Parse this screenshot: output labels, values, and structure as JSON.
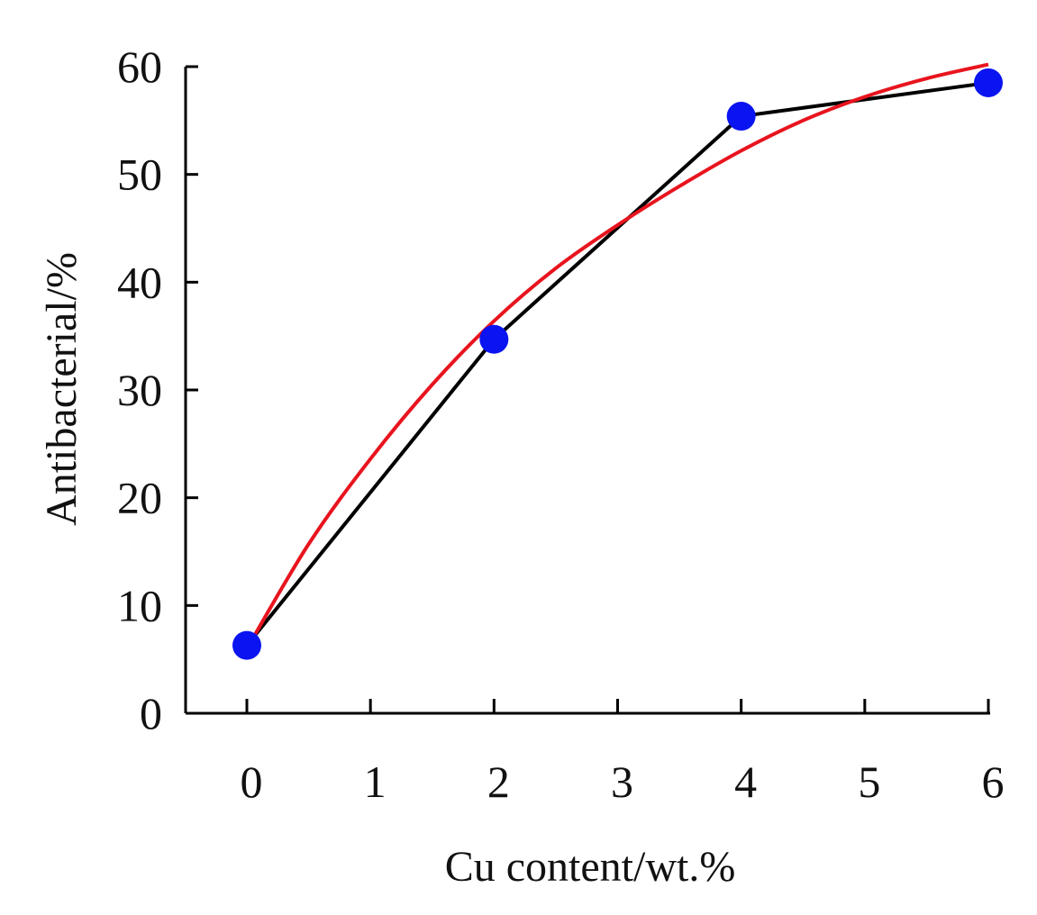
{
  "chart_data": {
    "type": "line",
    "title": "",
    "xlabel": "Cu content/wt.%",
    "ylabel": "Antibacterial/%",
    "xlim": [
      0,
      6
    ],
    "ylim": [
      0,
      60
    ],
    "xticks": [
      0,
      1,
      2,
      3,
      4,
      5,
      6
    ],
    "yticks": [
      0,
      10,
      20,
      30,
      40,
      50,
      60
    ],
    "grid": false,
    "legend": "none",
    "series": [
      {
        "kind": "line-with-markers",
        "color": "#000000",
        "marker_color": "#0a14f0",
        "x": [
          0,
          2,
          4,
          6
        ],
        "y": [
          6.3,
          34.7,
          55.4,
          58.5
        ]
      },
      {
        "kind": "fitted-curve",
        "color": "#e8141e",
        "x": [
          0,
          0.5,
          1,
          1.5,
          2,
          2.5,
          3,
          3.5,
          4,
          4.5,
          5,
          5.5,
          6
        ],
        "y": [
          6,
          15.7,
          23.6,
          30.5,
          36.4,
          41.3,
          45.3,
          48.9,
          52.2,
          55.0,
          57.2,
          58.9,
          60.2
        ]
      }
    ]
  }
}
